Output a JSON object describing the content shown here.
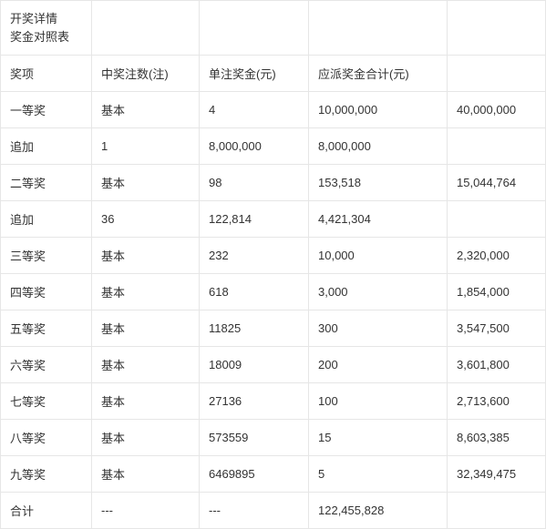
{
  "title": {
    "line1": "开奖详情",
    "line2": "奖金对照表"
  },
  "columns": [
    "奖项",
    "中奖注数(注)",
    "单注奖金(元)",
    "应派奖金合计(元)",
    ""
  ],
  "rows": [
    [
      "一等奖",
      "基本",
      "4",
      "10,000,000",
      "40,000,000"
    ],
    [
      "追加",
      "1",
      "8,000,000",
      "8,000,000",
      ""
    ],
    [
      "二等奖",
      "基本",
      "98",
      "153,518",
      "15,044,764"
    ],
    [
      "追加",
      "36",
      "122,814",
      "4,421,304",
      ""
    ],
    [
      "三等奖",
      "基本",
      "232",
      "10,000",
      "2,320,000"
    ],
    [
      "四等奖",
      "基本",
      "618",
      "3,000",
      "1,854,000"
    ],
    [
      "五等奖",
      "基本",
      "11825",
      "300",
      "3,547,500"
    ],
    [
      "六等奖",
      "基本",
      "18009",
      "200",
      "3,601,800"
    ],
    [
      "七等奖",
      "基本",
      "27136",
      "100",
      "2,713,600"
    ],
    [
      "八等奖",
      "基本",
      "573559",
      "15",
      "8,603,385"
    ],
    [
      "九等奖",
      "基本",
      "6469895",
      "5",
      "32,349,475"
    ],
    [
      "合计",
      "---",
      "---",
      "122,455,828",
      ""
    ]
  ]
}
